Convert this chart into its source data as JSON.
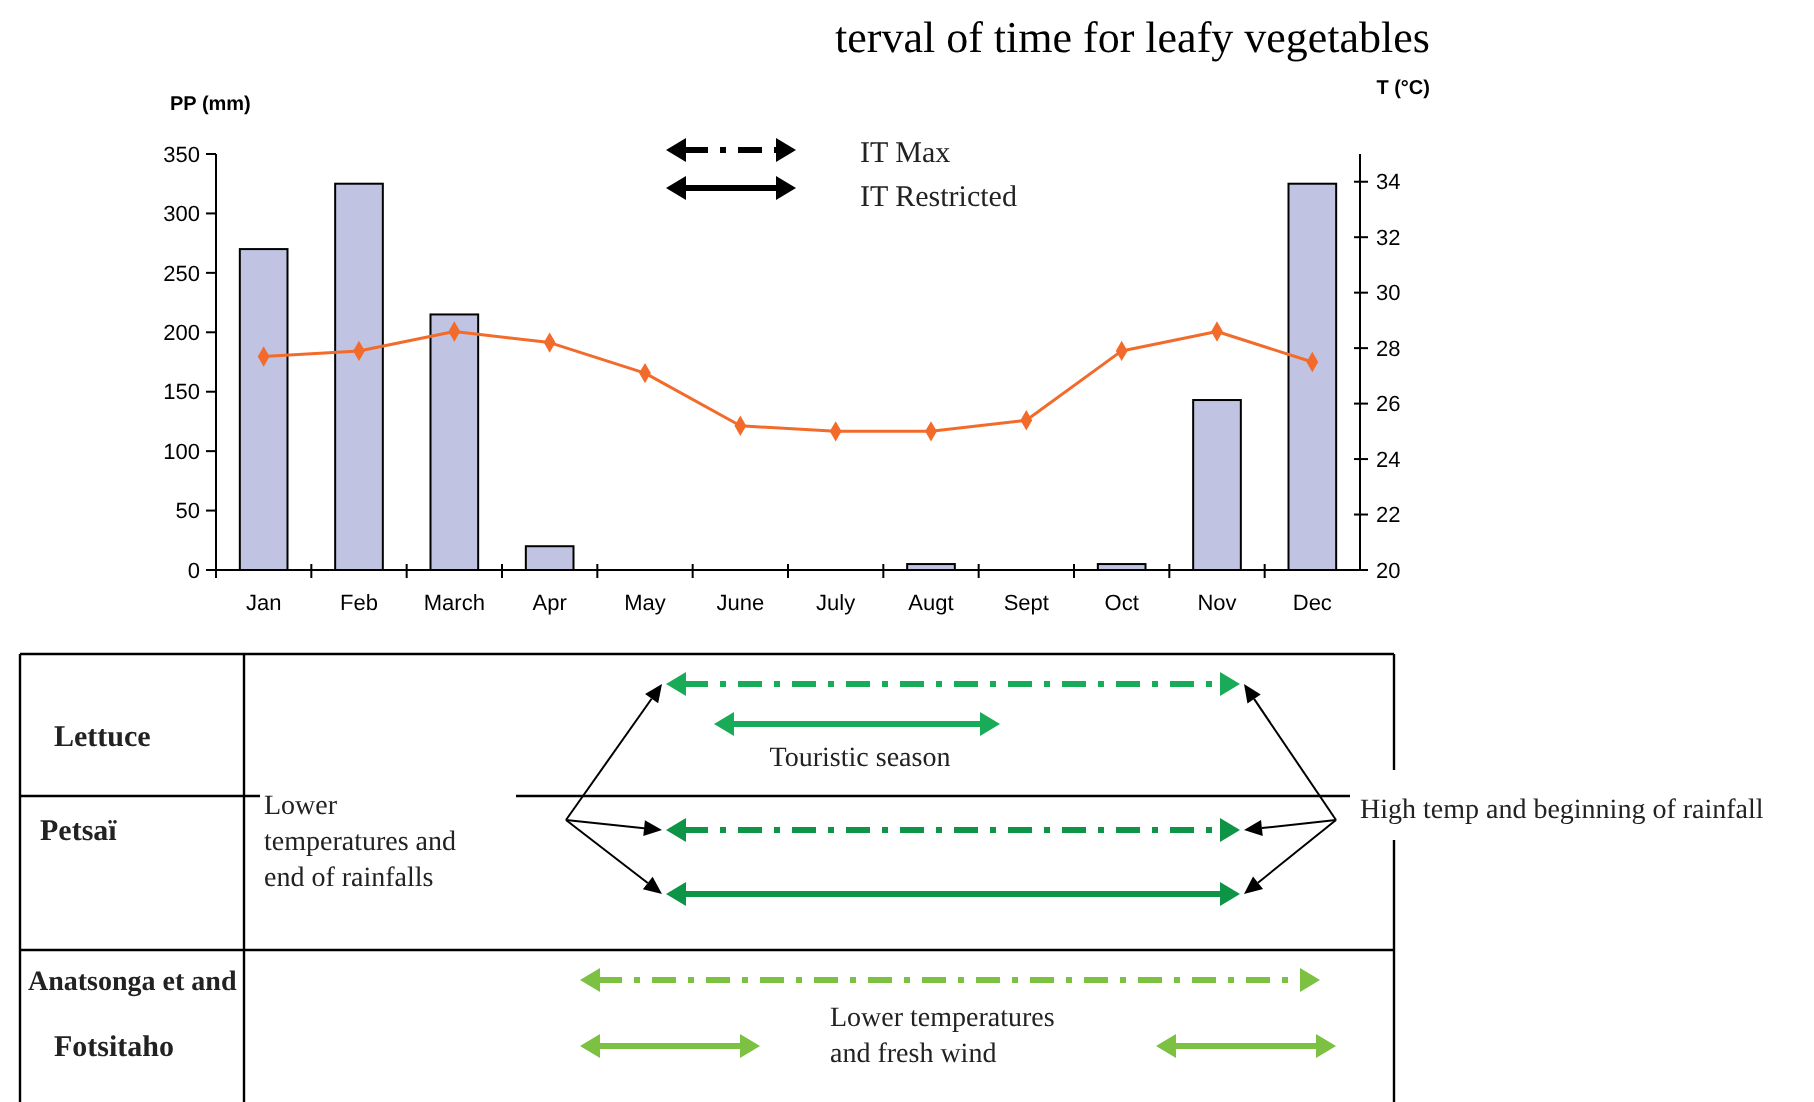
{
  "chart_data": {
    "type": "bar",
    "title": "terval of time for leafy vegetables",
    "ylabel": "PP (mm)",
    "y2label": "T (°C)",
    "categories": [
      "Jan",
      "Feb",
      "March",
      "Apr",
      "May",
      "June",
      "July",
      "Augt",
      "Sept",
      "Oct",
      "Nov",
      "Dec"
    ],
    "series": [
      {
        "color": "#c0c4e2",
        "values": [
          270,
          325,
          215,
          20,
          0,
          0,
          0,
          5,
          0,
          5,
          143,
          325
        ]
      },
      {
        "type": "line",
        "axis": "y2",
        "color": "#f26b2a",
        "values": [
          27.7,
          27.9,
          28.6,
          28.2,
          27.1,
          25.2,
          25.0,
          25.0,
          25.4,
          27.9,
          28.6,
          27.5
        ]
      }
    ],
    "ylim": [
      0,
      350
    ],
    "yticks": [
      0,
      50,
      100,
      150,
      200,
      250,
      300,
      350
    ],
    "y2lim": [
      20,
      35
    ],
    "y2ticks": [
      20,
      22,
      24,
      26,
      28,
      30,
      32,
      34
    ],
    "marker": "diamond",
    "annotations": [
      "IT Max",
      "IT Restricted",
      "Lettuce",
      "Touristic season",
      "Petsaï",
      "Lower\ntemperatures and\nend of rainfalls",
      "High temp and beginning of rainfall",
      "Anatsonga  et and",
      "Fotsitaho",
      "Lower temperatures\nand fresh wind"
    ]
  }
}
